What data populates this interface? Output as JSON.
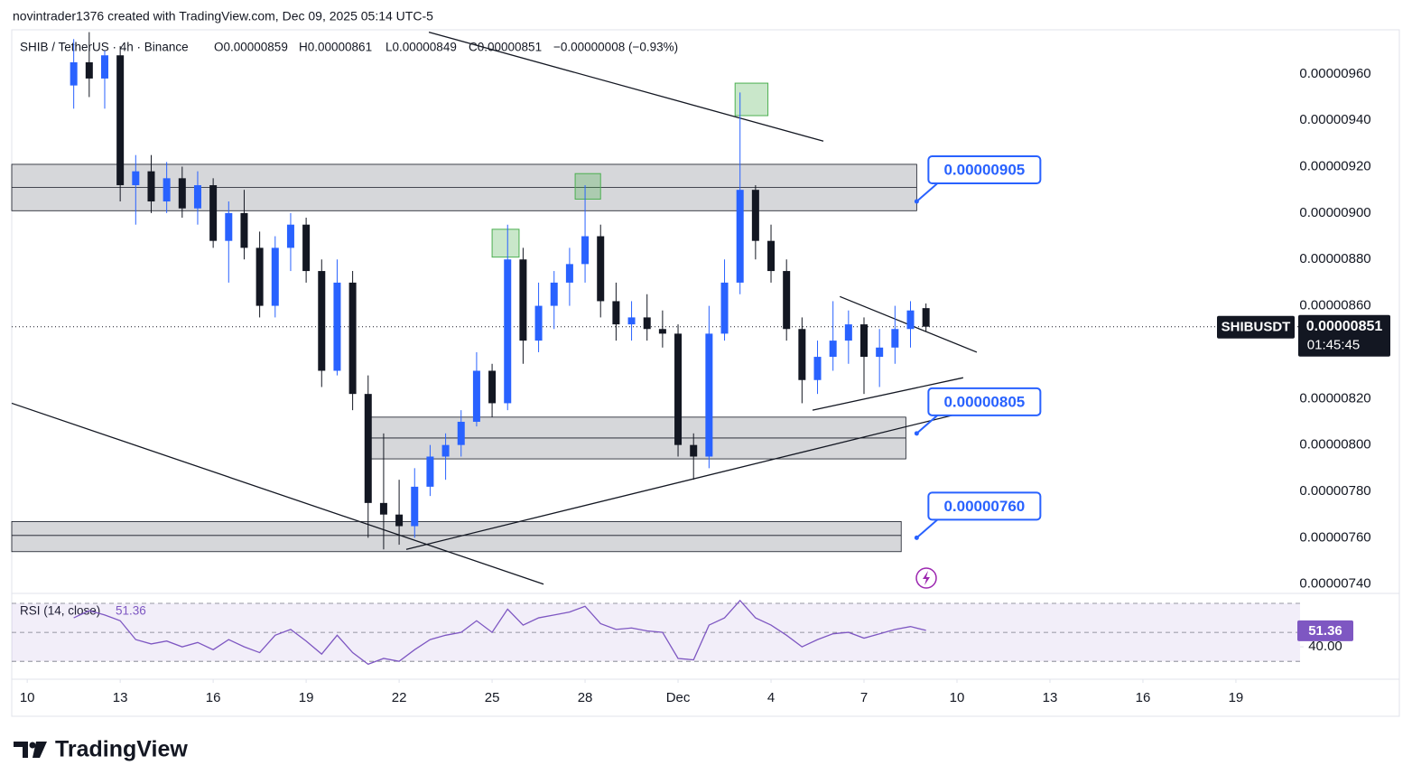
{
  "header": {
    "credit": "novintrader1376 created with TradingView.com, Dec 09, 2025 05:14 UTC-5",
    "brand": "TradingView"
  },
  "chart_data": [
    {
      "type": "candlestick",
      "legend": {
        "symbol": "SHIB / TetherUS · 4h · Binance",
        "open": "O0.00000859",
        "high": "H0.00000861",
        "low": "L0.00000849",
        "close": "C0.00000851",
        "change": "−0.00000008 (−0.93%)"
      },
      "x": [
        11.5,
        12,
        12.5,
        13,
        13.5,
        14,
        14.5,
        15,
        15.5,
        16,
        16.5,
        17,
        17.5,
        18,
        18.5,
        19,
        19.5,
        20,
        20.5,
        21,
        21.5,
        22,
        22.5,
        23,
        23.5,
        24,
        24.5,
        25,
        25.5,
        26,
        26.5,
        27,
        27.5,
        28,
        28.5,
        29,
        29.5,
        30,
        30.5,
        31,
        31.5,
        32,
        32.5,
        33,
        33.5,
        34,
        34.5,
        35,
        35.5,
        36,
        36.5,
        37,
        37.5,
        38,
        38.5,
        39
      ],
      "opens": [
        9.55e-06,
        9.65e-06,
        9.58e-06,
        9.68e-06,
        9.12e-06,
        9.18e-06,
        9.05e-06,
        9.15e-06,
        9.02e-06,
        9.12e-06,
        8.88e-06,
        9e-06,
        8.85e-06,
        8.6e-06,
        8.85e-06,
        8.95e-06,
        8.75e-06,
        8.32e-06,
        8.7e-06,
        8.22e-06,
        7.75e-06,
        7.7e-06,
        7.65e-06,
        7.82e-06,
        7.95e-06,
        8e-06,
        8.1e-06,
        8.32e-06,
        8.18e-06,
        8.8e-06,
        8.45e-06,
        8.6e-06,
        8.7e-06,
        8.78e-06,
        8.9e-06,
        8.62e-06,
        8.52e-06,
        8.55e-06,
        8.5e-06,
        8.48e-06,
        8e-06,
        7.95e-06,
        8.48e-06,
        8.7e-06,
        9.1e-06,
        8.88e-06,
        8.75e-06,
        8.5e-06,
        8.28e-06,
        8.38e-06,
        8.45e-06,
        8.52e-06,
        8.38e-06,
        8.42e-06,
        8.5e-06,
        8.59e-06
      ],
      "highs": [
        9.75e-06,
        9.78e-06,
        9.7e-06,
        9.72e-06,
        9.25e-06,
        9.25e-06,
        9.22e-06,
        9.2e-06,
        9.18e-06,
        9.15e-06,
        9.05e-06,
        9.1e-06,
        8.92e-06,
        8.9e-06,
        9e-06,
        8.98e-06,
        8.8e-06,
        8.8e-06,
        8.75e-06,
        8.3e-06,
        8.05e-06,
        7.85e-06,
        7.9e-06,
        8e-06,
        8.05e-06,
        8.15e-06,
        8.4e-06,
        8.35e-06,
        8.95e-06,
        8.85e-06,
        8.7e-06,
        8.75e-06,
        8.85e-06,
        9.12e-06,
        8.95e-06,
        8.7e-06,
        8.62e-06,
        8.65e-06,
        8.58e-06,
        8.52e-06,
        8.05e-06,
        8.6e-06,
        8.8e-06,
        9.52e-06,
        9.12e-06,
        8.95e-06,
        8.8e-06,
        8.55e-06,
        8.45e-06,
        8.62e-06,
        8.58e-06,
        8.55e-06,
        8.5e-06,
        8.6e-06,
        8.62e-06,
        8.61e-06
      ],
      "lows": [
        9.45e-06,
        9.5e-06,
        9.45e-06,
        9.05e-06,
        8.95e-06,
        9e-06,
        9e-06,
        8.98e-06,
        8.95e-06,
        8.85e-06,
        8.7e-06,
        8.8e-06,
        8.55e-06,
        8.55e-06,
        8.75e-06,
        8.7e-06,
        8.25e-06,
        8.3e-06,
        8.15e-06,
        7.6e-06,
        7.55e-06,
        7.57e-06,
        7.6e-06,
        7.78e-06,
        7.85e-06,
        7.95e-06,
        8.08e-06,
        8.12e-06,
        8.15e-06,
        8.35e-06,
        8.4e-06,
        8.5e-06,
        8.6e-06,
        8.7e-06,
        8.55e-06,
        8.45e-06,
        8.45e-06,
        8.45e-06,
        8.42e-06,
        7.95e-06,
        7.85e-06,
        7.9e-06,
        8.45e-06,
        8.65e-06,
        8.8e-06,
        8.7e-06,
        8.45e-06,
        8.18e-06,
        8.22e-06,
        8.32e-06,
        8.35e-06,
        8.22e-06,
        8.25e-06,
        8.35e-06,
        8.42e-06,
        8.49e-06
      ],
      "closes": [
        9.65e-06,
        9.58e-06,
        9.68e-06,
        9.12e-06,
        9.18e-06,
        9.05e-06,
        9.15e-06,
        9.02e-06,
        9.12e-06,
        8.88e-06,
        9e-06,
        8.85e-06,
        8.6e-06,
        8.85e-06,
        8.95e-06,
        8.75e-06,
        8.32e-06,
        8.7e-06,
        8.22e-06,
        7.75e-06,
        7.7e-06,
        7.65e-06,
        7.82e-06,
        7.95e-06,
        8e-06,
        8.1e-06,
        8.32e-06,
        8.18e-06,
        8.8e-06,
        8.45e-06,
        8.6e-06,
        8.7e-06,
        8.78e-06,
        8.9e-06,
        8.62e-06,
        8.52e-06,
        8.55e-06,
        8.5e-06,
        8.48e-06,
        8e-06,
        7.95e-06,
        8.48e-06,
        8.7e-06,
        9.1e-06,
        8.88e-06,
        8.75e-06,
        8.5e-06,
        8.28e-06,
        8.38e-06,
        8.45e-06,
        8.52e-06,
        8.38e-06,
        8.42e-06,
        8.5e-06,
        8.58e-06,
        8.51e-06
      ],
      "up_color": "#2962ff",
      "down_color": "#131722",
      "xlim": [
        9.5,
        51.07
      ],
      "xticks": [
        10,
        13,
        16,
        19,
        22,
        25,
        28,
        {
          "value": 31,
          "label": "Dec"
        },
        {
          "value": 34,
          "label": "4"
        },
        {
          "value": 37,
          "label": "7"
        },
        {
          "value": 40,
          "label": "10"
        },
        {
          "value": 43,
          "label": "13"
        },
        {
          "value": 46,
          "label": "16"
        },
        {
          "value": 49,
          "label": "19"
        }
      ],
      "ylim": [
        7.36e-06,
        9.79e-06
      ],
      "yticks": [
        {
          "value": 9.6e-06,
          "label": "0.00000960"
        },
        {
          "value": 9.4e-06,
          "label": "0.00000940"
        },
        {
          "value": 9.2e-06,
          "label": "0.00000920"
        },
        {
          "value": 9e-06,
          "label": "0.00000900"
        },
        {
          "value": 8.8e-06,
          "label": "0.00000880"
        },
        {
          "value": 8.6e-06,
          "label": "0.00000860"
        },
        {
          "value": 8.4e-06,
          "label": "0.00000840"
        },
        {
          "value": 8.2e-06,
          "label": "0.00000820"
        },
        {
          "value": 8e-06,
          "label": "0.00000800"
        },
        {
          "value": 7.8e-06,
          "label": "0.00000780"
        },
        {
          "value": 7.6e-06,
          "label": "0.00000760"
        },
        {
          "value": 7.4e-06,
          "label": "0.00000740"
        }
      ],
      "grid": false,
      "zones": [
        {
          "x": [
            9.5,
            38.7
          ],
          "y": [
            9.21e-06,
            9.01e-06
          ],
          "mid": 9.11e-06
        },
        {
          "x": [
            21.0,
            38.35
          ],
          "y": [
            8.12e-06,
            7.94e-06
          ],
          "mid": 8.03e-06
        },
        {
          "x": [
            9.5,
            38.2
          ],
          "y": [
            7.67e-06,
            7.54e-06
          ],
          "mid": 7.61e-06
        }
      ],
      "highlights": [
        {
          "x": [
            25.0,
            25.87
          ],
          "y": [
            8.93e-06,
            8.81e-06
          ]
        },
        {
          "x": [
            27.68,
            28.5
          ],
          "y": [
            9.17e-06,
            9.06e-06
          ]
        },
        {
          "x": [
            32.84,
            33.9
          ],
          "y": [
            9.56e-06,
            9.42e-06
          ]
        }
      ],
      "trendlines": [
        {
          "x": [
            22.96,
            35.69
          ],
          "y": [
            9.78e-06,
            9.31e-06
          ]
        },
        {
          "x": [
            9.5,
            26.66
          ],
          "y": [
            8.18e-06,
            7.4e-06
          ]
        },
        {
          "x": [
            22.23,
            40.53
          ],
          "y": [
            7.55e-06,
            8.15e-06
          ]
        },
        {
          "x": [
            36.22,
            40.64
          ],
          "y": [
            8.64e-06,
            8.4e-06
          ]
        },
        {
          "x": [
            35.34,
            40.2
          ],
          "y": [
            8.15e-06,
            8.29e-06
          ]
        }
      ],
      "callouts": [
        {
          "x": 38.7,
          "value": 9.05e-06,
          "label": "0.00000905"
        },
        {
          "x": 38.7,
          "value": 8.05e-06,
          "label": "0.00000805"
        },
        {
          "x": 38.7,
          "value": 7.6e-06,
          "label": "0.00000760"
        }
      ],
      "last_price": {
        "value": 8.51e-06,
        "label": "0.00000851",
        "symbol": "SHIBUSDT",
        "countdown": "01:45:45"
      }
    },
    {
      "type": "line",
      "title": "RSI (14, close)",
      "color": "#7e57c2",
      "x": [
        11.5,
        12,
        12.5,
        13,
        13.5,
        14,
        14.5,
        15,
        15.5,
        16,
        16.5,
        17,
        17.5,
        18,
        18.5,
        19,
        19.5,
        20,
        20.5,
        21,
        21.5,
        22,
        22.5,
        23,
        23.5,
        24,
        24.5,
        25,
        25.5,
        26,
        26.5,
        27,
        27.5,
        28,
        28.5,
        29,
        29.5,
        30,
        30.5,
        31,
        31.5,
        32,
        32.5,
        33,
        33.5,
        34,
        34.5,
        35,
        35.5,
        36,
        36.5,
        37,
        37.5,
        38,
        38.5,
        39
      ],
      "values": [
        60,
        65,
        62,
        58,
        45,
        42,
        44,
        40,
        43,
        38,
        45,
        40,
        36,
        48,
        52,
        44,
        35,
        48,
        36,
        28,
        32,
        30,
        38,
        45,
        48,
        50,
        58,
        50,
        66,
        55,
        60,
        62,
        64,
        68,
        56,
        52,
        53,
        51,
        50,
        32,
        31,
        55,
        60,
        72,
        60,
        55,
        48,
        40,
        45,
        49,
        50,
        46,
        49,
        52,
        54,
        51.36
      ],
      "bands": [
        30,
        50,
        70
      ],
      "xlim": [
        9.5,
        51.07
      ],
      "ylim": [
        22,
        75
      ],
      "yticks": [
        {
          "value": 40,
          "label": "40.00"
        }
      ]
    }
  ]
}
